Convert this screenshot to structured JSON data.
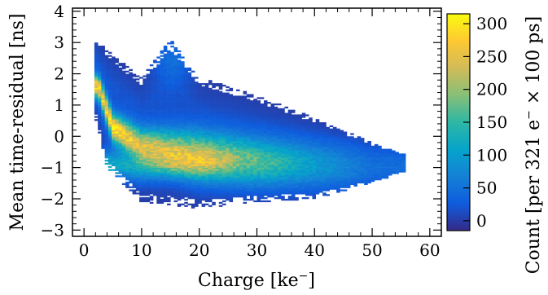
{
  "chart_data": {
    "type": "heatmap",
    "title": "",
    "xlabel": "Charge [ke",
    "xlabel_sup": "−",
    "xlabel_end": "]",
    "ylabel": "Mean time-residual [ns]",
    "zlabel_pre": "Count [per 321 e",
    "zlabel_sup": "−",
    "zlabel_post": " × 100 ps]",
    "xlim": [
      -2,
      62
    ],
    "ylim": [
      -3.2,
      4.1
    ],
    "zlim": [
      -15,
      315
    ],
    "xticks": [
      0,
      10,
      20,
      30,
      40,
      50,
      60
    ],
    "yticks": [
      -3,
      -2,
      -1,
      0,
      1,
      2,
      3,
      4
    ],
    "zticks": [
      0,
      50,
      100,
      150,
      200,
      250,
      300
    ],
    "colormap": "parula",
    "grid": false,
    "distribution": {
      "main_band": [
        {
          "charge": 2.5,
          "residual": 1.6,
          "count": 250
        },
        {
          "charge": 5,
          "residual": 0.3,
          "count": 280
        },
        {
          "charge": 10,
          "residual": -0.3,
          "count": 220
        },
        {
          "charge": 20,
          "residual": -0.6,
          "count": 200
        },
        {
          "charge": 30,
          "residual": -0.8,
          "count": 160
        },
        {
          "charge": 40,
          "residual": -0.9,
          "count": 90
        },
        {
          "charge": 50,
          "residual": -1.0,
          "count": 40
        }
      ],
      "secondary_band": [
        {
          "charge": 5,
          "residual": -0.9,
          "count": 110
        },
        {
          "charge": 10,
          "residual": -1.0,
          "count": 90
        },
        {
          "charge": 20,
          "residual": -0.9,
          "count": 70
        }
      ],
      "upper_bump": {
        "charge": 15.5,
        "residual": 2.5,
        "count": 40
      },
      "charge_range": [
        1.8,
        56
      ],
      "upper_edge": [
        [
          2,
          3.2
        ],
        [
          5,
          2.6
        ],
        [
          10,
          1.9
        ],
        [
          15,
          3.1
        ],
        [
          20,
          1.9
        ],
        [
          30,
          1.3
        ],
        [
          40,
          0.6
        ],
        [
          50,
          -0.2
        ],
        [
          56,
          -0.6
        ]
      ],
      "lower_edge": [
        [
          2,
          0.6
        ],
        [
          4,
          -1.0
        ],
        [
          10,
          -2.1
        ],
        [
          20,
          -2.3
        ],
        [
          30,
          -2.1
        ],
        [
          40,
          -2.0
        ],
        [
          50,
          -1.5
        ],
        [
          56,
          -1.1
        ]
      ]
    }
  }
}
